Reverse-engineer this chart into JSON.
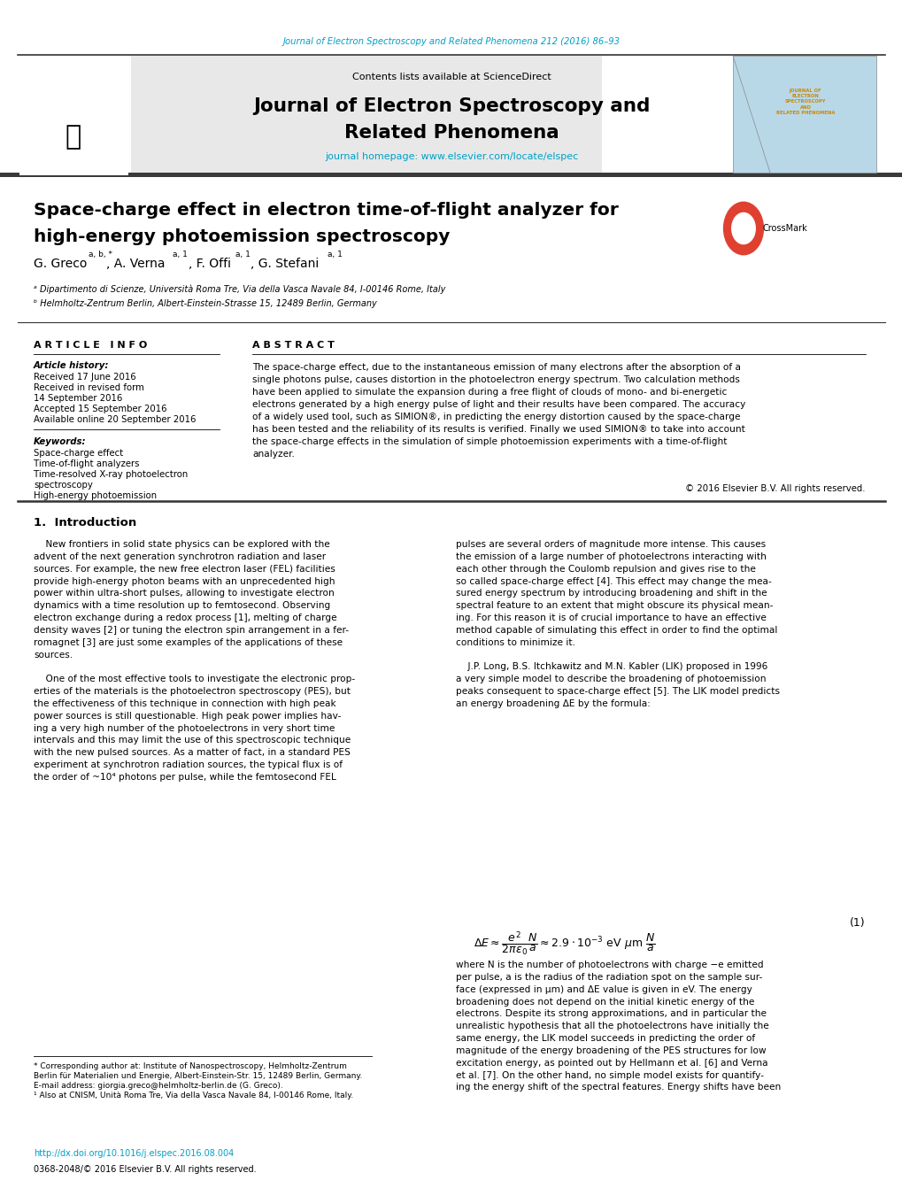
{
  "page_width": 10.2,
  "page_height": 13.51,
  "bg_color": "#ffffff",
  "top_citation": "Journal of Electron Spectroscopy and Related Phenomena 212 (2016) 86–93",
  "citation_color": "#00a0c6",
  "journal_name_line1": "Journal of Electron Spectroscopy and",
  "journal_name_line2": "Related Phenomena",
  "journal_homepage_prefix": "journal homepage: ",
  "journal_homepage_url": "www.elsevier.com/locate/elspec",
  "homepage_url_color": "#00a0c6",
  "header_bg_color": "#e8e8e8",
  "header_border_color": "#333333",
  "elsevier_color": "#f07020",
  "article_title_line1": "Space-charge effect in electron time-of-flight analyzer for",
  "article_title_line2": "high-energy photoemission spectroscopy",
  "affil_a": "ᵃ Dipartimento di Scienze, Università Roma Tre, Via della Vasca Navale 84, I-00146 Rome, Italy",
  "affil_b": "ᵇ Helmholtz-Zentrum Berlin, Albert-Einstein-Strasse 15, 12489 Berlin, Germany",
  "separator_color": "#333333",
  "article_info_title": "A R T I C L E   I N F O",
  "abstract_title": "A B S T R A C T",
  "article_history_label": "Article history:",
  "history_items": [
    "Received 17 June 2016",
    "Received in revised form",
    "14 September 2016",
    "Accepted 15 September 2016",
    "Available online 20 September 2016"
  ],
  "keywords_label": "Keywords:",
  "keywords": [
    "Space-charge effect",
    "Time-of-flight analyzers",
    "Time-resolved X-ray photoelectron",
    "spectroscopy",
    "High-energy photoemission"
  ],
  "copyright": "© 2016 Elsevier B.V. All rights reserved.",
  "section1_title": "1.  Introduction",
  "footnote_star": "* Corresponding author at: Institute of Nanospectroscopy, Helmholtz-Zentrum",
  "footnote_star2": "Berlin für Materialien und Energie, Albert-Einstein-Str. 15, 12489 Berlin, Germany.",
  "footnote_email": "E-mail address: giorgia.greco@helmholtz-berlin.de (G. Greco).",
  "footnote_one": "¹ Also at CNISM, Unità Roma Tre, Via della Vasca Navale 84, I-00146 Rome, Italy.",
  "doi": "http://dx.doi.org/10.1016/j.elspec.2016.08.004",
  "issn": "0368-2048/© 2016 Elsevier B.V. All rights reserved.",
  "doi_color": "#00a0c6",
  "dark_bar_color": "#3a3a3a",
  "ref_color": "#00a0c6",
  "contents_text": "Contents lists available at ",
  "sciencedirect_text": "ScienceDirect",
  "sciencedirect_color": "#00a0c6"
}
